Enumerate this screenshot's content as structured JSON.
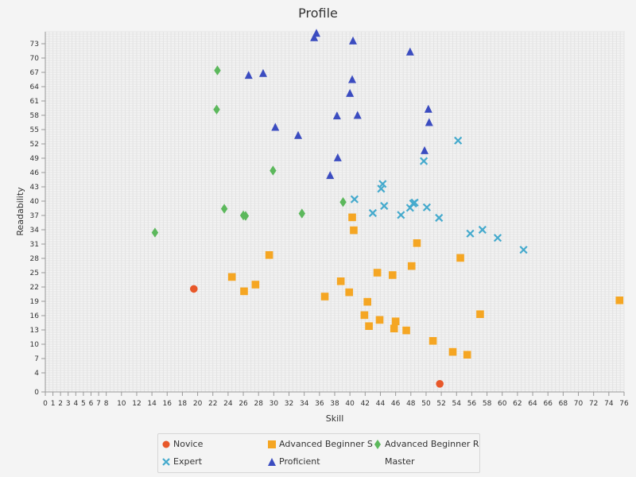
{
  "chart_data": {
    "type": "scatter",
    "title": "Profile",
    "xlabel": "Skill",
    "ylabel": "Readability",
    "xlim": [
      0,
      76
    ],
    "ylim": [
      0,
      75.5
    ],
    "x_ticks": [
      0,
      1,
      2,
      3,
      4,
      5,
      6,
      7,
      8,
      10,
      12,
      14,
      16,
      18,
      20,
      22,
      24,
      26,
      28,
      30,
      32,
      34,
      36,
      38,
      40,
      42,
      44,
      46,
      48,
      50,
      52,
      54,
      56,
      58,
      60,
      62,
      64,
      66,
      68,
      70,
      72,
      74,
      76
    ],
    "y_ticks": [
      0,
      4,
      7,
      10,
      13,
      16,
      19,
      22,
      25,
      28,
      31,
      34,
      37,
      40,
      43,
      46,
      49,
      52,
      55,
      58,
      61,
      64,
      67,
      70,
      73
    ],
    "grid": true,
    "legend_position": "bottom",
    "series": [
      {
        "name": "Novice",
        "marker": "circle",
        "color": "#e8582a",
        "points": [
          [
            19.5,
            21.6
          ],
          [
            51.8,
            1.7
          ]
        ]
      },
      {
        "name": "Advanced Beginner S",
        "marker": "square",
        "color": "#f5a623",
        "points": [
          [
            24.5,
            24.1
          ],
          [
            26.1,
            21.1
          ],
          [
            27.6,
            22.5
          ],
          [
            29.4,
            28.7
          ],
          [
            36.7,
            20.0
          ],
          [
            38.8,
            23.2
          ],
          [
            39.9,
            20.9
          ],
          [
            40.3,
            36.6
          ],
          [
            40.5,
            33.9
          ],
          [
            41.9,
            16.1
          ],
          [
            42.3,
            18.9
          ],
          [
            42.5,
            13.8
          ],
          [
            43.6,
            25.0
          ],
          [
            43.9,
            15.1
          ],
          [
            45.6,
            24.5
          ],
          [
            45.8,
            13.3
          ],
          [
            46.0,
            14.8
          ],
          [
            47.4,
            12.9
          ],
          [
            48.1,
            26.4
          ],
          [
            48.8,
            31.2
          ],
          [
            50.9,
            10.7
          ],
          [
            53.5,
            8.4
          ],
          [
            54.5,
            28.1
          ],
          [
            55.4,
            7.8
          ],
          [
            57.1,
            16.3
          ],
          [
            75.4,
            19.2
          ]
        ]
      },
      {
        "name": "Advanced Beginner R",
        "marker": "diamond",
        "color": "#5cb85c",
        "points": [
          [
            14.4,
            33.4
          ],
          [
            22.5,
            59.2
          ],
          [
            22.6,
            67.4
          ],
          [
            23.5,
            38.4
          ],
          [
            26.0,
            37.0
          ],
          [
            26.3,
            36.9
          ],
          [
            29.9,
            46.4
          ],
          [
            33.7,
            37.4
          ],
          [
            39.1,
            39.8
          ]
        ]
      },
      {
        "name": "Expert",
        "marker": "x",
        "color": "#45aacd",
        "points": [
          [
            40.6,
            40.4
          ],
          [
            43.0,
            37.5
          ],
          [
            44.1,
            42.6
          ],
          [
            44.3,
            43.6
          ],
          [
            44.5,
            39.0
          ],
          [
            46.7,
            37.1
          ],
          [
            47.9,
            38.6
          ],
          [
            48.3,
            39.5
          ],
          [
            48.5,
            39.7
          ],
          [
            49.7,
            48.4
          ],
          [
            50.1,
            38.7
          ],
          [
            51.7,
            36.5
          ],
          [
            54.2,
            52.7
          ],
          [
            55.8,
            33.2
          ],
          [
            57.4,
            34.0
          ],
          [
            59.4,
            32.3
          ],
          [
            62.8,
            29.8
          ]
        ]
      },
      {
        "name": "Proficient",
        "marker": "triangle",
        "color": "#3b4cc0",
        "points": [
          [
            35.3,
            74.3
          ],
          [
            35.6,
            75.2
          ],
          [
            40.4,
            73.6
          ],
          [
            47.9,
            71.3
          ],
          [
            26.7,
            66.4
          ],
          [
            28.6,
            66.8
          ],
          [
            40.3,
            65.5
          ],
          [
            40.0,
            62.6
          ],
          [
            50.3,
            59.3
          ],
          [
            30.2,
            55.5
          ],
          [
            50.4,
            56.5
          ],
          [
            38.3,
            57.9
          ],
          [
            41.0,
            58.0
          ],
          [
            33.2,
            53.8
          ],
          [
            49.8,
            50.6
          ],
          [
            38.4,
            49.1
          ],
          [
            37.4,
            45.4
          ]
        ]
      },
      {
        "name": "Master",
        "marker": "none",
        "color": "#333333",
        "points": []
      }
    ]
  }
}
